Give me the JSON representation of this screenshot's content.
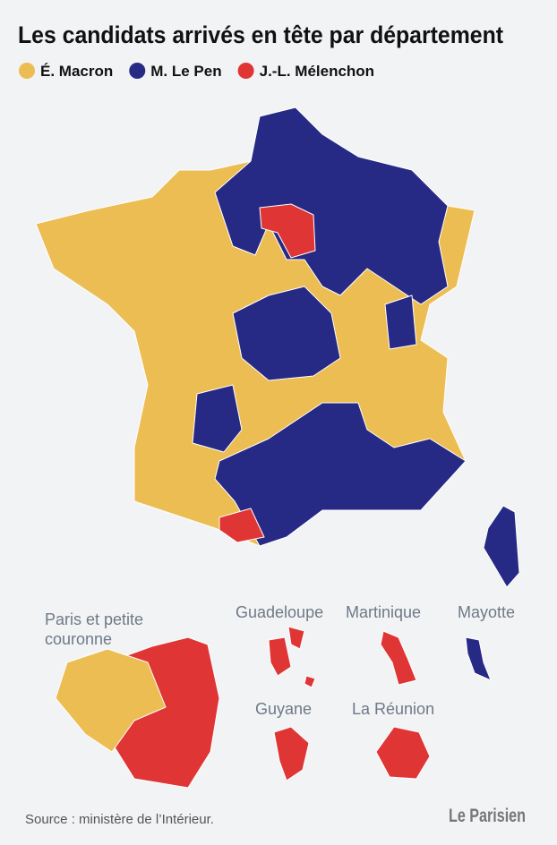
{
  "title": "Les candidats arrivés en tête par département",
  "legend": [
    {
      "label": "É. Macron",
      "color": "#ecbd52"
    },
    {
      "label": "M. Le Pen",
      "color": "#262a85"
    },
    {
      "label": "J.-L. Mélenchon",
      "color": "#df3535"
    }
  ],
  "insets": [
    {
      "label": "Paris et petite couronne"
    },
    {
      "label": "Guadeloupe"
    },
    {
      "label": "Martinique"
    },
    {
      "label": "Mayotte"
    },
    {
      "label": "Guyane"
    },
    {
      "label": "La Réunion"
    }
  ],
  "source": "Source : ministère de l’Intérieur.",
  "logo": "Le Parisien"
}
